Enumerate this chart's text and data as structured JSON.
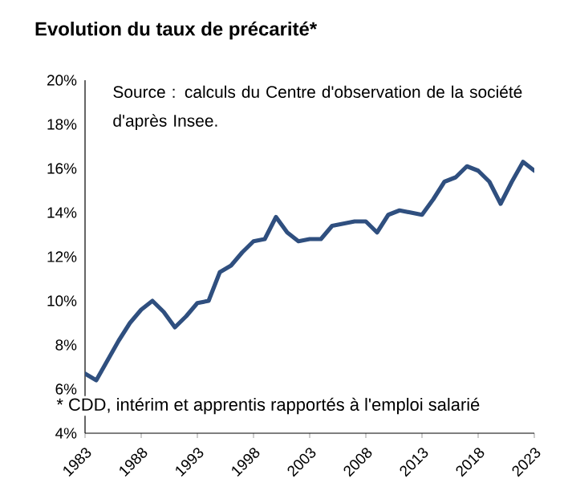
{
  "chart_data": {
    "type": "line",
    "title": "Evolution du taux de précarité*",
    "annotations": [
      "Source : calculs du Centre d'observation de la société d'après Insee.",
      "* CDD, intérim et apprentis rapportés à l'emploi salarié"
    ],
    "x": [
      1983,
      1984,
      1985,
      1986,
      1987,
      1988,
      1989,
      1990,
      1991,
      1992,
      1993,
      1994,
      1995,
      1996,
      1997,
      1998,
      1999,
      2000,
      2001,
      2002,
      2003,
      2004,
      2005,
      2006,
      2007,
      2008,
      2009,
      2010,
      2011,
      2012,
      2013,
      2014,
      2015,
      2016,
      2017,
      2018,
      2019,
      2020,
      2021,
      2022,
      2023
    ],
    "values": [
      6.7,
      6.4,
      7.3,
      8.2,
      9.0,
      9.6,
      10.0,
      9.5,
      8.8,
      9.3,
      9.9,
      10.0,
      11.3,
      11.6,
      12.2,
      12.7,
      12.8,
      13.8,
      13.1,
      12.7,
      12.8,
      12.8,
      13.4,
      13.5,
      13.6,
      13.6,
      13.1,
      13.9,
      14.1,
      14.0,
      13.9,
      14.6,
      15.4,
      15.6,
      16.1,
      15.9,
      15.4,
      14.4,
      15.4,
      16.3,
      15.9
    ],
    "color": "#2f4f7f",
    "marker": "none",
    "line_style": "solid",
    "grid": false,
    "xlim": [
      1983,
      2023
    ],
    "xticks": [
      1983,
      1988,
      1993,
      1998,
      2003,
      2008,
      2013,
      2018,
      2023
    ],
    "ylim": [
      4,
      20
    ],
    "yticks": [
      {
        "value": 4,
        "label": "4%"
      },
      {
        "value": 6,
        "label": "6%"
      },
      {
        "value": 8,
        "label": "8%"
      },
      {
        "value": 10,
        "label": "10%"
      },
      {
        "value": 12,
        "label": "12%"
      },
      {
        "value": 14,
        "label": "14%"
      },
      {
        "value": 16,
        "label": "16%"
      },
      {
        "value": 18,
        "label": "18%"
      },
      {
        "value": 20,
        "label": "20%"
      }
    ]
  }
}
